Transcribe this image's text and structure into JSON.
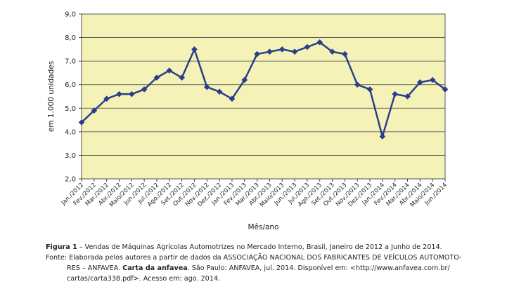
{
  "chart_data": {
    "type": "line",
    "title": "",
    "xlabel": "Mês/ano",
    "ylabel": "em 1.000 unidades",
    "ylim": [
      2.0,
      9.0
    ],
    "yticks": [
      "2,0",
      "3,0",
      "4,0",
      "5,0",
      "6,0",
      "7,0",
      "8,0",
      "9,0"
    ],
    "grid": true,
    "legend": "none",
    "plot_background": "#F5F2B7",
    "line_color": "#2B3D8C",
    "categories": [
      "Jan./2012",
      "Fev./2012",
      "Mar./2012",
      "Abr./2012",
      "Maio/2012",
      "Jun./2012",
      "Jul./2012",
      "Ago./2012",
      "Set./2012",
      "Out./2012",
      "Nov./2012",
      "Dez./2012",
      "Jan./2013",
      "Fev./2013",
      "Mar./2013",
      "Abr./2013",
      "Maio/2013",
      "Jun./2013",
      "Jul./2013",
      "Ago./2013",
      "Set./2013",
      "Out./2013",
      "Nov./2013",
      "Dez./2013",
      "Jan./2014",
      "Fev./2014",
      "Mar./2014",
      "Abr./2014",
      "Maio/2014",
      "Jun./2014"
    ],
    "values": [
      4.4,
      4.9,
      5.4,
      5.6,
      5.6,
      5.8,
      6.3,
      6.6,
      6.3,
      7.5,
      5.9,
      5.7,
      5.4,
      6.2,
      7.3,
      7.4,
      7.5,
      7.4,
      7.6,
      7.8,
      7.4,
      7.3,
      6.0,
      5.8,
      3.8,
      5.6,
      5.5,
      6.1,
      6.2,
      5.8
    ]
  },
  "caption": {
    "figure_label": "Figura 1",
    "figure_text": " – Vendas de Máquinas Agrícolas Automotrizes no Mercado Interno, Brasil, Janeiro de 2012 a Junho de 2014.",
    "source_line1": "Fonte: Elaborada pelos autores a partir de dados da ASSOCIAÇÃO NACIONAL DOS FABRICANTES DE VEÍCULOS AUTOMOTO-",
    "source_line2_a": "RES – ANFAVEA. ",
    "source_line2_bold": "Carta da anfavea",
    "source_line2_b": ". São Paulo: ANFAVEA, jul. 2014. Disponível em: <http://www.anfavea.com.br/",
    "source_line3": "cartas/carta338.pdf>. Acesso em: ago. 2014."
  }
}
